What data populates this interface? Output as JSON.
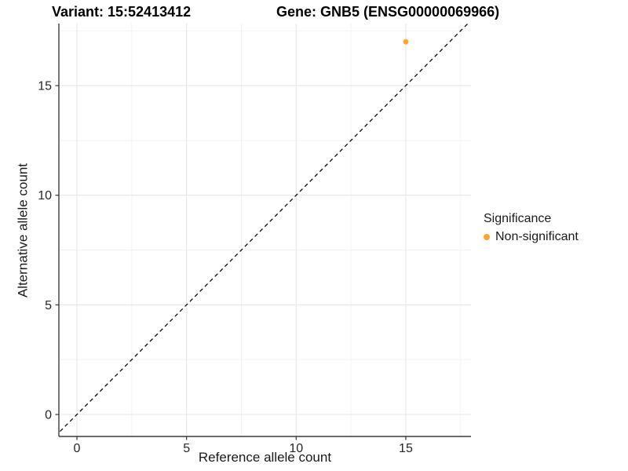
{
  "chart_data": {
    "type": "scatter",
    "title_left": "Variant: 15:52413412",
    "title_right": "Gene: GNB5 (ENSG00000069966)",
    "xlabel": "Reference allele count",
    "ylabel": "Alternative allele count",
    "xlim": [
      -0.85,
      18.0
    ],
    "ylim": [
      -1.0,
      17.85
    ],
    "x_ticks": [
      0,
      5,
      10,
      15
    ],
    "y_ticks": [
      0,
      5,
      10,
      15
    ],
    "x_minor_ticks": [
      2.5,
      7.5,
      12.5,
      17.5
    ],
    "y_minor_ticks": [
      2.5,
      7.5,
      12.5,
      17.5
    ],
    "grid": "major+minor",
    "series": [
      {
        "name": "Non-significant",
        "color": "#FFA427",
        "points": [
          {
            "x": 15,
            "y": 17
          }
        ]
      }
    ],
    "reference_line": {
      "type": "identity",
      "equation": "y = x",
      "style": "dashed",
      "color": "#000000",
      "from": {
        "x": -1,
        "y": -1
      },
      "to": {
        "x": 18,
        "y": 18
      }
    },
    "legend": {
      "title": "Significance",
      "position": "right",
      "items": [
        {
          "label": "Non-significant",
          "color": "#FFA427"
        }
      ]
    },
    "style": {
      "background": "#ffffff",
      "axis_line_color": "#3c3c3c",
      "tick_color": "#333333",
      "tick_label_color": "#262626",
      "grid_major_color": "#e6e6e6",
      "grid_minor_color": "#f2f2f2",
      "point_color": "#FFA427"
    }
  }
}
